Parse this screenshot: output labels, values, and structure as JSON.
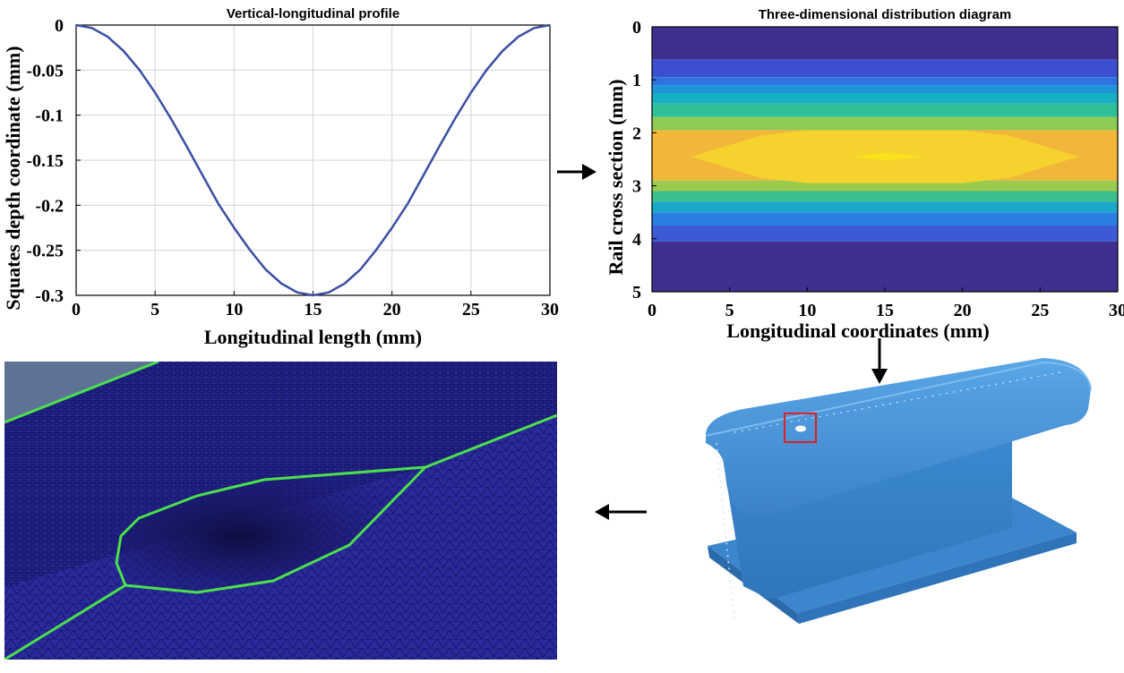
{
  "chart_data": [
    {
      "type": "line",
      "title": "Vertical-longitudinal profile",
      "xlabel": "Longitudinal length (mm)",
      "ylabel": "Squates depth coordinate (mm)",
      "xlim": [
        0,
        30
      ],
      "ylim": [
        -0.3,
        0
      ],
      "xticks": [
        "0",
        "5",
        "10",
        "15",
        "20",
        "25",
        "30"
      ],
      "yticks": [
        "0",
        "-0.05",
        "-0.1",
        "-0.15",
        "-0.2",
        "-0.25",
        "-0.3"
      ],
      "grid": true,
      "series": [
        {
          "color": "#3a4fa3",
          "x": [
            0,
            1,
            2,
            3,
            4,
            5,
            6,
            7,
            8,
            9,
            10,
            11,
            12,
            13,
            14,
            15,
            16,
            17,
            18,
            19,
            20,
            21,
            22,
            23,
            24,
            25,
            26,
            27,
            28,
            29,
            30
          ],
          "y": [
            0,
            -0.0033,
            -0.013,
            -0.0287,
            -0.0496,
            -0.075,
            -0.1037,
            -0.1346,
            -0.1665,
            -0.1982,
            -0.225,
            -0.2496,
            -0.2713,
            -0.2869,
            -0.2967,
            -0.3,
            -0.2967,
            -0.2869,
            -0.2713,
            -0.2496,
            -0.225,
            -0.1982,
            -0.1665,
            -0.1346,
            -0.1037,
            -0.075,
            -0.0496,
            -0.0287,
            -0.013,
            -0.0033,
            0
          ]
        }
      ]
    },
    {
      "type": "heatmap",
      "title": "Three-dimensional distribution diagram",
      "xlabel": "Longitudinal coordinates (mm)",
      "ylabel": "Rail cross section (mm)",
      "xlim": [
        0,
        30
      ],
      "ylim": [
        0,
        5
      ],
      "xticks": [
        "0",
        "5",
        "10",
        "15",
        "20",
        "25",
        "30"
      ],
      "yticks": [
        "0",
        "1",
        "2",
        "3",
        "4",
        "5"
      ],
      "bands": [
        {
          "y0": 0,
          "y1": 0.62,
          "color": "#3f2f8f"
        },
        {
          "y0": 0.62,
          "y1": 0.95,
          "color": "#3c4fd0"
        },
        {
          "y0": 0.95,
          "y1": 1.1,
          "color": "#2f73e0"
        },
        {
          "y0": 1.1,
          "y1": 1.25,
          "color": "#1f93d8"
        },
        {
          "y0": 1.25,
          "y1": 1.45,
          "color": "#16b0c2"
        },
        {
          "y0": 1.45,
          "y1": 1.7,
          "color": "#2fc09a"
        },
        {
          "y0": 1.7,
          "y1": 1.95,
          "color": "#8ccb56"
        },
        {
          "y0": 1.95,
          "y1": 2.9,
          "color": "#f2b63a"
        },
        {
          "y0": 2.9,
          "y1": 3.1,
          "color": "#9acb4e"
        },
        {
          "y0": 3.1,
          "y1": 3.3,
          "color": "#3cbf8c"
        },
        {
          "y0": 3.3,
          "y1": 3.5,
          "color": "#19a8c8"
        },
        {
          "y0": 3.5,
          "y1": 3.75,
          "color": "#2a7fe2"
        },
        {
          "y0": 3.75,
          "y1": 4.05,
          "color": "#3b5bd6"
        },
        {
          "y0": 4.05,
          "y1": 5,
          "color": "#3f2f8f"
        }
      ],
      "core_colors": [
        "#f6d22e",
        "#f9e41a"
      ]
    }
  ]
}
